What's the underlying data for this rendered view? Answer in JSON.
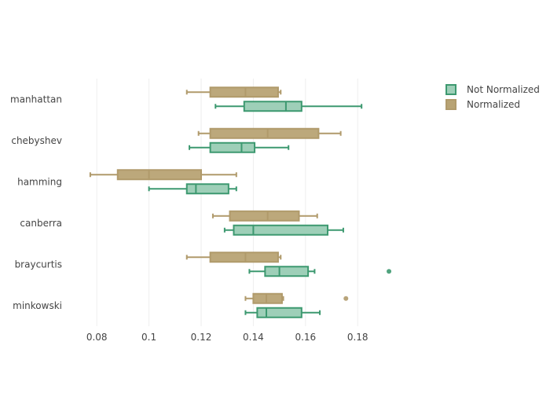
{
  "chart_data": {
    "type": "box",
    "orientation": "horizontal",
    "categories": [
      "manhattan",
      "chebyshev",
      "hamming",
      "canberra",
      "braycurtis",
      "minkowski"
    ],
    "xlim": [
      0.07,
      0.195
    ],
    "xticks": [
      0.08,
      0.1,
      0.12,
      0.14,
      0.16,
      0.18
    ],
    "xtick_labels": [
      "0.08",
      "0.1",
      "0.12",
      "0.14",
      "0.16",
      "0.18"
    ],
    "grid": true,
    "legend_position": "top-right",
    "series": [
      {
        "name": "Not Normalized",
        "line_color": "#3d9970",
        "fill_color": "#9ecfb8",
        "boxes": [
          {
            "category": "manhattan",
            "whisker_low": 0.1255,
            "q1": 0.1365,
            "median": 0.1525,
            "q3": 0.1585,
            "whisker_high": 0.1815,
            "outliers": []
          },
          {
            "category": "chebyshev",
            "whisker_low": 0.1155,
            "q1": 0.1235,
            "median": 0.1355,
            "q3": 0.1405,
            "whisker_high": 0.1535,
            "outliers": []
          },
          {
            "category": "hamming",
            "whisker_low": 0.1,
            "q1": 0.1145,
            "median": 0.118,
            "q3": 0.1305,
            "whisker_high": 0.1335,
            "outliers": []
          },
          {
            "category": "canberra",
            "whisker_low": 0.129,
            "q1": 0.1325,
            "median": 0.14,
            "q3": 0.1685,
            "whisker_high": 0.1745,
            "outliers": []
          },
          {
            "category": "braycurtis",
            "whisker_low": 0.1385,
            "q1": 0.1445,
            "median": 0.15,
            "q3": 0.161,
            "whisker_high": 0.1635,
            "outliers": [
              0.192
            ]
          },
          {
            "category": "minkowski",
            "whisker_low": 0.137,
            "q1": 0.1415,
            "median": 0.145,
            "q3": 0.1585,
            "whisker_high": 0.1655,
            "outliers": []
          }
        ]
      },
      {
        "name": "Normalized",
        "line_color": "#b09a6b",
        "fill_color": "#b8a374",
        "boxes": [
          {
            "category": "manhattan",
            "whisker_low": 0.1145,
            "q1": 0.1235,
            "median": 0.137,
            "q3": 0.1495,
            "whisker_high": 0.1505,
            "outliers": []
          },
          {
            "category": "chebyshev",
            "whisker_low": 0.119,
            "q1": 0.1235,
            "median": 0.1455,
            "q3": 0.165,
            "whisker_high": 0.1735,
            "outliers": []
          },
          {
            "category": "hamming",
            "whisker_low": 0.0775,
            "q1": 0.088,
            "median": 0.1,
            "q3": 0.12,
            "whisker_high": 0.1335,
            "outliers": []
          },
          {
            "category": "canberra",
            "whisker_low": 0.1245,
            "q1": 0.131,
            "median": 0.1455,
            "q3": 0.1575,
            "whisker_high": 0.1645,
            "outliers": []
          },
          {
            "category": "braycurtis",
            "whisker_low": 0.1145,
            "q1": 0.1235,
            "median": 0.137,
            "q3": 0.1495,
            "whisker_high": 0.1505,
            "outliers": []
          },
          {
            "category": "minkowski",
            "whisker_low": 0.137,
            "q1": 0.14,
            "median": 0.145,
            "q3": 0.151,
            "whisker_high": 0.1515,
            "outliers": [
              0.1755
            ]
          }
        ]
      }
    ]
  }
}
